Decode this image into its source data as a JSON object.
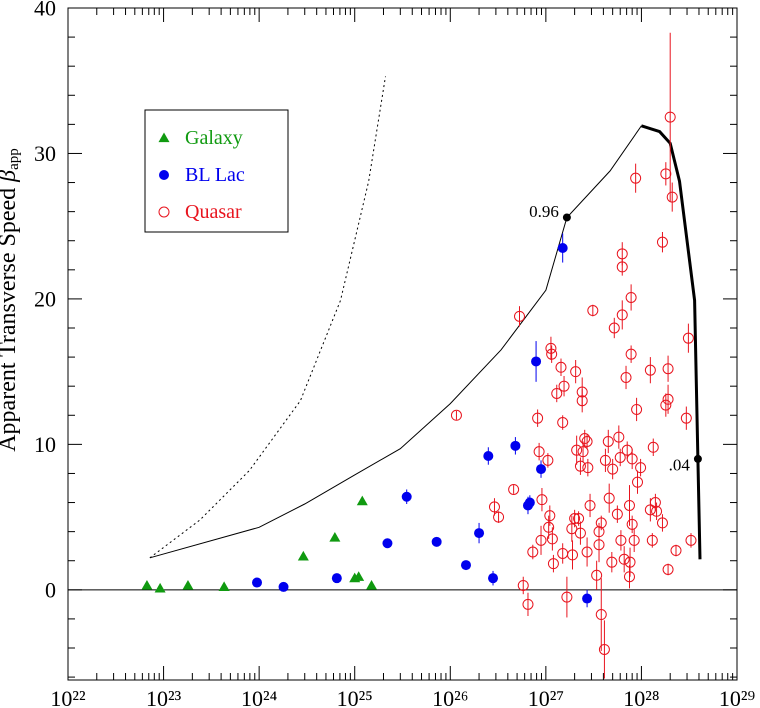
{
  "chart_data": {
    "type": "scatter",
    "ylabel": "Apparent Transverse Speed",
    "ylabel_symbol": "β",
    "ylabel_subscript": "app",
    "xscale": "log",
    "xlim": [
      1e+22,
      1e+29
    ],
    "ylim": [
      -6.2,
      40
    ],
    "xticks": [
      {
        "value": 1e+22,
        "label": "10²²"
      },
      {
        "value": 1e+23,
        "label": "10²³"
      },
      {
        "value": 1e+24,
        "label": "10²⁴"
      },
      {
        "value": 1e+25,
        "label": "10²⁵"
      },
      {
        "value": 1e+26,
        "label": "10²⁶"
      },
      {
        "value": 1e+27,
        "label": "10²⁷"
      },
      {
        "value": 1e+28,
        "label": "10²⁸"
      },
      {
        "value": 1e+29,
        "label": "10²⁹"
      }
    ],
    "xminorticks": [
      2e+22,
      3e+22,
      4e+22,
      5e+22,
      6e+22,
      7e+22,
      8e+22,
      9e+22,
      2e+23,
      3e+23,
      4e+23,
      5e+23,
      6e+23,
      7e+23,
      8e+23,
      9e+23,
      2e+24,
      3e+24,
      4e+24,
      5e+24,
      6e+24,
      7e+24,
      8e+24,
      9e+24,
      2e+25,
      3e+25,
      4e+25,
      5e+25,
      6e+25,
      7e+25,
      8e+25,
      9e+25,
      2e+26,
      3e+26,
      4e+26,
      5e+26,
      6e+26,
      7e+26,
      8e+26,
      9e+26,
      2e+27,
      3e+27,
      4e+27,
      5e+27,
      6e+27,
      7e+27,
      8e+27,
      9e+27,
      2e+28,
      3e+28,
      4e+28,
      5e+28,
      6e+28,
      7e+28,
      8e+28,
      9e+28
    ],
    "yticks": [
      0,
      10,
      20,
      30,
      40
    ],
    "yminorticks": [
      -6,
      -4,
      -2,
      2,
      4,
      6,
      8,
      12,
      14,
      16,
      18,
      22,
      24,
      26,
      28,
      32,
      34,
      36,
      38
    ],
    "reference_line": 0,
    "legend": "upper left",
    "series": [
      {
        "name": "Galaxy",
        "color": "#109a10",
        "marker": "triangle",
        "x": [
          6.7e+22,
          9.2e+22,
          1.8e+23,
          4.3e+23,
          2.9e+24,
          6.2e+24,
          1e+25,
          1.1e+25,
          1.2e+25,
          1.5e+25
        ],
        "values": [
          0.3,
          0.1,
          0.3,
          0.2,
          2.3,
          3.6,
          0.8,
          0.9,
          6.1,
          0.3
        ]
      },
      {
        "name": "BL Lac",
        "color": "#0000ee",
        "marker": "circle",
        "x": [
          9.5e+23,
          1.8e+24,
          6.5e+24,
          2.2e+25,
          3.5e+25,
          7.2e+25,
          1.46e+26,
          2e+26,
          2.5e+26,
          2.8e+26,
          4.8e+26,
          6.5e+26,
          6.8e+26,
          7.9e+26,
          8.9e+26,
          1.5e+27,
          2.7e+27
        ],
        "values": [
          0.5,
          0.2,
          0.8,
          3.2,
          6.4,
          3.3,
          1.7,
          3.9,
          9.2,
          0.8,
          9.9,
          5.8,
          6.0,
          15.7,
          8.3,
          23.5,
          -0.6
        ],
        "errors": [
          0.1,
          0.1,
          0.2,
          0.2,
          0.5,
          0.2,
          0.2,
          0.7,
          0.6,
          0.5,
          0.6,
          0.6,
          0.5,
          1.4,
          0.6,
          1.0,
          0.6
        ]
      },
      {
        "name": "Quasar",
        "color": "#e8141e",
        "marker": "open-circle",
        "x": [
          1.16e+26,
          2.9e+26,
          3.2e+26,
          4.6e+26,
          5.3e+26,
          5.8e+26,
          6.5e+26,
          7.3e+26,
          8.2e+26,
          8.5e+26,
          8.9e+26,
          9.1e+26,
          1.05e+27,
          1.07e+27,
          1.1e+27,
          1.13e+27,
          1.15e+27,
          1.17e+27,
          1.2e+27,
          1.3e+27,
          1.44e+27,
          1.5e+27,
          1.5e+27,
          1.55e+27,
          1.66e+27,
          1.87e+27,
          1.9e+27,
          2e+27,
          2.05e+27,
          2.1e+27,
          2.2e+27,
          2.3e+27,
          2.3e+27,
          2.4e+27,
          2.4e+27,
          2.45e+27,
          2.55e+27,
          2.7e+27,
          2.7e+27,
          2.75e+27,
          2.9e+27,
          3.1e+27,
          3.4e+27,
          3.6e+27,
          3.6e+27,
          3.8e+27,
          3.8e+27,
          4.1e+27,
          4.2e+27,
          4.5e+27,
          4.6e+27,
          4.9e+27,
          5e+27,
          5.2e+27,
          5.6e+27,
          5.8e+27,
          6e+27,
          6.1e+27,
          6.3e+27,
          6.3e+27,
          6.3e+27,
          6.6e+27,
          6.9e+27,
          7.1e+27,
          7.5e+27,
          7.5e+27,
          7.6e+27,
          7.8e+27,
          7.8e+27,
          8e+27,
          8e+27,
          8.4e+27,
          8.7e+27,
          8.9e+27,
          9.1e+27,
          9.8e+27,
          1.24e+28,
          1.24e+28,
          1.3e+28,
          1.33e+28,
          1.4e+28,
          1.44e+28,
          1.66e+28,
          1.66e+28,
          1.8e+28,
          1.8e+28,
          1.9e+28,
          1.9e+28,
          1.9e+28,
          2e+28,
          2.1e+28,
          2.3e+28,
          2.95e+28,
          3.1e+28,
          3.3e+28
        ],
        "values": [
          12.0,
          5.7,
          5.0,
          6.9,
          18.8,
          0.3,
          -1.0,
          2.6,
          11.8,
          9.5,
          3.4,
          6.2,
          8.9,
          4.3,
          5.1,
          16.6,
          16.2,
          3.5,
          1.8,
          13.5,
          15.3,
          11.5,
          2.5,
          14.0,
          -0.5,
          4.2,
          2.4,
          4.9,
          15.0,
          9.6,
          4.9,
          3.9,
          8.5,
          13.0,
          13.6,
          9.5,
          10.4,
          2.6,
          10.2,
          8.4,
          5.8,
          19.2,
          1.0,
          3.1,
          4.0,
          4.6,
          -1.7,
          -4.1,
          8.9,
          10.2,
          6.3,
          1.9,
          8.3,
          18.0,
          5.2,
          10.5,
          9.1,
          3.4,
          23.1,
          22.2,
          18.9,
          2.1,
          14.6,
          9.6,
          0.9,
          5.8,
          1.9,
          16.2,
          20.1,
          9.0,
          4.5,
          3.4,
          28.3,
          12.4,
          7.4,
          8.4,
          15.1,
          5.5,
          3.4,
          9.8,
          6.0,
          5.4,
          23.9,
          4.6,
          12.7,
          28.6,
          15.2,
          13.1,
          1.4,
          32.5,
          27.0,
          2.7,
          11.8,
          17.3,
          3.4
        ],
        "errors": [
          0.3,
          0.6,
          0.4,
          0.3,
          0.7,
          0.6,
          0.8,
          0.5,
          0.6,
          0.6,
          1.0,
          0.8,
          0.5,
          0.8,
          0.7,
          0.8,
          0.6,
          0.8,
          0.6,
          0.6,
          0.6,
          0.5,
          0.7,
          0.7,
          1.4,
          0.9,
          1.0,
          0.6,
          0.8,
          1.0,
          0.5,
          0.8,
          0.6,
          0.8,
          1.0,
          0.7,
          0.6,
          1.0,
          0.5,
          0.6,
          0.8,
          0.4,
          1.0,
          1.2,
          0.6,
          0.5,
          2.5,
          2.0,
          0.8,
          0.8,
          1.0,
          0.7,
          0.7,
          0.7,
          0.6,
          0.8,
          0.6,
          0.7,
          0.8,
          0.6,
          1.0,
          0.9,
          0.8,
          0.6,
          0.8,
          1.4,
          1.0,
          0.6,
          0.9,
          0.7,
          0.6,
          0.8,
          1.0,
          0.8,
          0.8,
          0.6,
          0.9,
          0.8,
          0.5,
          0.6,
          0.6,
          0.6,
          0.7,
          0.6,
          0.8,
          0.8,
          0.9,
          1.0,
          0.4,
          5.8,
          1.0,
          0.4,
          0.8,
          1.0,
          0.5
        ]
      }
    ],
    "lines": [
      {
        "style": "dotted",
        "width": 1,
        "x": [
          7.2e+22,
          2.4e+23,
          7.9e+23,
          2.7e+24,
          7.1e+24,
          1.4e+25,
          2.1e+25
        ],
        "values": [
          2.2,
          4.8,
          8.2,
          13.0,
          19.9,
          28.1,
          35.3
        ]
      },
      {
        "style": "solid",
        "width": 1,
        "x": [
          7.2e+22,
          1e+24,
          3e+24,
          1e+25,
          3e+25,
          1e+26,
          3.4e+26,
          1e+27,
          1.66e+27,
          4.7e+27,
          1e+28
        ],
        "values": [
          2.2,
          4.3,
          5.9,
          7.9,
          9.7,
          12.8,
          16.5,
          20.6,
          25.6,
          28.8,
          31.9
        ]
      },
      {
        "style": "solid",
        "width": 3,
        "x": [
          1e+28,
          1.55e+28,
          2e+28,
          2.5e+28,
          3.6e+28,
          3.9e+28,
          4.1e+28
        ],
        "values": [
          31.9,
          31.5,
          30.7,
          28.1,
          19.9,
          9.0,
          2.1
        ]
      }
    ],
    "markers": [
      {
        "x": 1.66e+27,
        "y": 25.6,
        "label": "0.96"
      },
      {
        "x": 3.9e+28,
        "y": 9.0,
        "label": ".04"
      }
    ]
  }
}
